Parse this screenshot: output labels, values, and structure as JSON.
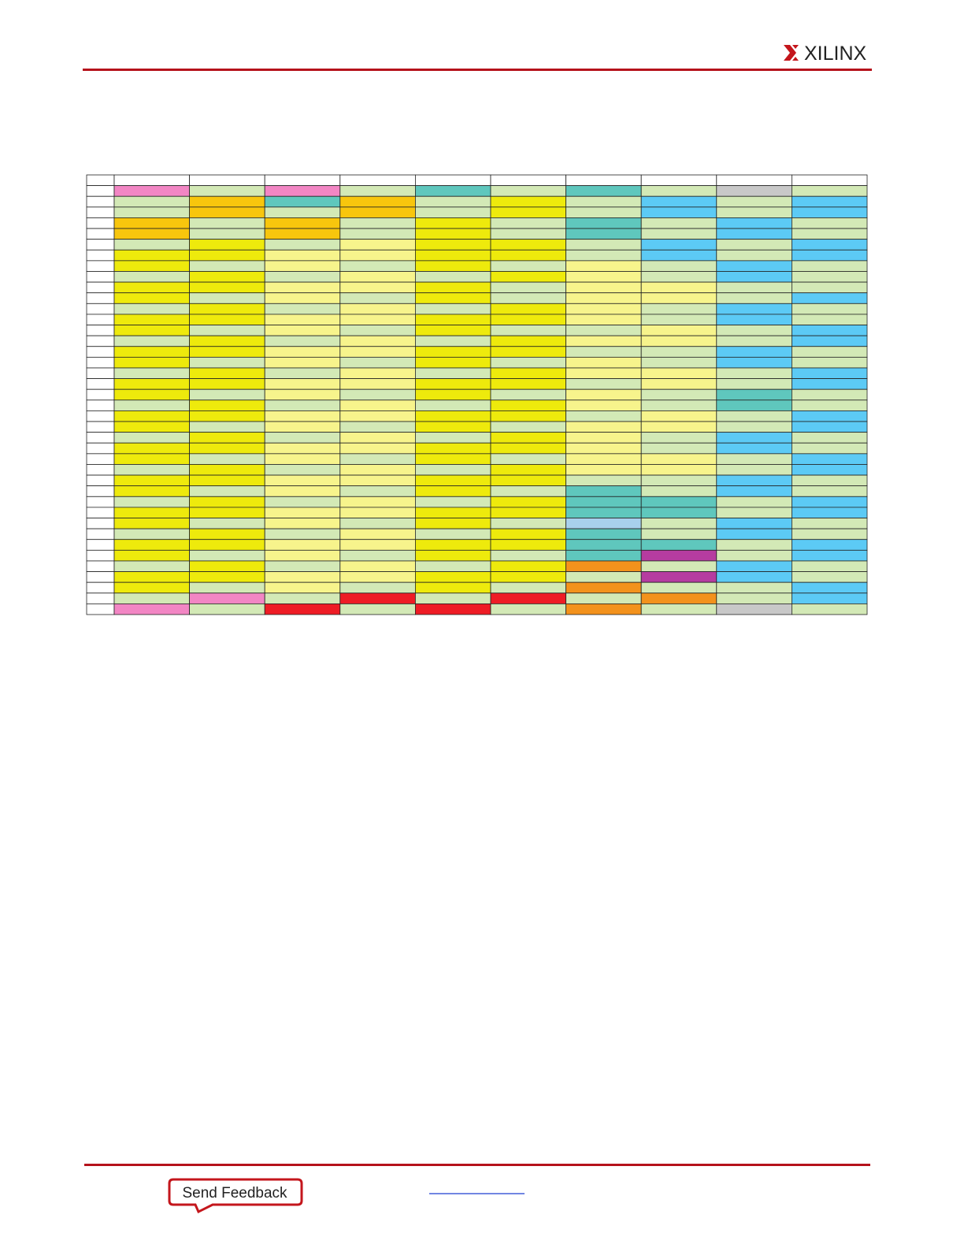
{
  "header": {
    "logo": "XILINX"
  },
  "footer": {
    "feedback": "Send Feedback"
  }
}
